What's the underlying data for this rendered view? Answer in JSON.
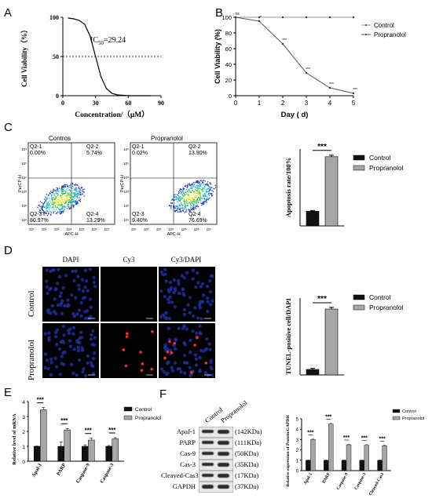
{
  "panel_labels": {
    "a": "A",
    "b": "B",
    "c": "C",
    "d": "D",
    "e": "E",
    "f": "F"
  },
  "chart_data": [
    {
      "id": "A",
      "type": "line",
      "ylabel": "Cell Viability（%）",
      "xlabel": "Concentration/（μM）",
      "xlim": [
        0,
        90
      ],
      "ylim": [
        0,
        100
      ],
      "xticks": [
        "0",
        "30",
        "60",
        "90"
      ],
      "yticks": [
        "0",
        "50",
        "100"
      ],
      "annotation": "IC50=29.24",
      "annotation_parts": {
        "pre": "IC",
        "sub": "50",
        "post": "=29.24"
      },
      "reference_line_y": 50,
      "series": [
        {
          "x": [
            5,
            10,
            15,
            20,
            25,
            30,
            35,
            40,
            45,
            50,
            55,
            60,
            70,
            80
          ],
          "y": [
            99,
            98,
            96,
            91,
            76,
            50,
            24,
            9,
            3,
            1,
            0.5,
            0,
            0,
            0
          ]
        }
      ]
    },
    {
      "id": "B",
      "type": "line",
      "ylabel": "Cell Viability (%)",
      "xlabel": "Day ( d)",
      "xlim": [
        0,
        5
      ],
      "ylim": [
        0,
        100
      ],
      "xticks": [
        "0",
        "1",
        "2",
        "3",
        "4",
        "5"
      ],
      "yticks": [
        "0",
        "20",
        "40",
        "60",
        "80",
        "100"
      ],
      "legend": [
        "Control",
        "Propranolol"
      ],
      "legend_position": "top-right",
      "series": [
        {
          "name": "Control",
          "x": [
            0,
            1,
            2,
            3,
            4,
            5
          ],
          "y": [
            100,
            100,
            100,
            100,
            100,
            100
          ]
        },
        {
          "name": "Propranolol",
          "x": [
            0,
            1,
            2,
            3,
            4,
            5
          ],
          "y": [
            100,
            95,
            66,
            29,
            10,
            3
          ]
        }
      ],
      "significance": [
        "ns",
        "*",
        "***",
        "***",
        "***",
        "***"
      ]
    },
    {
      "id": "C-bar",
      "type": "bar",
      "ylabel": "Apoptosis rate/100%",
      "categories": [
        "Control",
        "Propranolol"
      ],
      "values": [
        19,
        90
      ],
      "errors": [
        1,
        2
      ],
      "ylim": [
        0,
        100
      ],
      "legend": [
        "Control",
        "Propranolol"
      ],
      "significance": "***"
    },
    {
      "id": "D-bar",
      "type": "bar",
      "ylabel": "TUNEL-positive cell/DAPI",
      "categories": [
        "Control",
        "Propranolol"
      ],
      "values": [
        0.1,
        1.2
      ],
      "errors": [
        0.02,
        0.03
      ],
      "ylim": [
        0,
        1.4
      ],
      "legend": [
        "Control",
        "Propranolol"
      ],
      "significance": "***"
    },
    {
      "id": "E",
      "type": "bar",
      "ylabel": "Relative level of mRNA",
      "categories": [
        "Apaf-1",
        "PARP",
        "Caspase-9",
        "Caspase-3"
      ],
      "yticks": [
        "0",
        "1",
        "2",
        "3",
        "4"
      ],
      "ylim": [
        0,
        4
      ],
      "legend": [
        "Control",
        "Propranolol"
      ],
      "series": [
        {
          "name": "Control",
          "values": [
            1,
            1,
            1,
            1
          ],
          "errors": [
            0.02,
            0.3,
            0.1,
            0.05
          ]
        },
        {
          "name": "Propranolol",
          "values": [
            3.45,
            2.1,
            1.42,
            1.5
          ],
          "errors": [
            0.15,
            0.1,
            0.12,
            0.08
          ]
        }
      ],
      "significance": [
        "***",
        "***",
        "***",
        "***"
      ]
    },
    {
      "id": "F-bar",
      "type": "bar",
      "ylabel": "Relative expression of Protein/GAPDH",
      "categories": [
        "Apaf-1",
        "PARP",
        "Caspase-9",
        "Caspase-3",
        "Cleaved-Cas3"
      ],
      "yticks": [
        "0",
        "1",
        "2",
        "3",
        "4",
        "5"
      ],
      "ylim": [
        0,
        5
      ],
      "legend": [
        "Control",
        "Propranolol"
      ],
      "series": [
        {
          "name": "Control",
          "values": [
            1,
            1,
            1,
            1,
            1
          ],
          "errors": [
            0.02,
            0.02,
            0.02,
            0.02,
            0.02
          ]
        },
        {
          "name": "Propranolol",
          "values": [
            3.0,
            4.5,
            2.5,
            2.45,
            2.4
          ],
          "errors": [
            0.08,
            0.08,
            0.06,
            0.06,
            0.06
          ]
        }
      ],
      "significance": [
        "***",
        "***",
        "***",
        "***",
        "***"
      ]
    }
  ],
  "flow": {
    "plots": [
      {
        "title": "Contros",
        "q1_label": "Q2-1",
        "q1_val": "0.00%",
        "q2_label": "Q2-2",
        "q2_val": "5.74%",
        "q3_label": "Q2-3",
        "q3_val": "80.97%",
        "q4_label": "Q2-4",
        "q4_val": "13.29%"
      },
      {
        "title": "Propranolol",
        "q1_label": "Q2-1",
        "q1_val": "0.02%",
        "q2_label": "Q2-2",
        "q2_val": "13.90%",
        "q3_label": "Q2-3",
        "q3_val": "9.40%",
        "q4_label": "Q2-4",
        "q4_val": "76.69%"
      }
    ],
    "xlabel": "APC-H",
    "ylabel": "PerCP-H",
    "xticks": [
      "10¹",
      "10²",
      "10³",
      "10⁴",
      "10⁵",
      "10⁶",
      "10⁷",
      "10¹²"
    ],
    "yticks": [
      "10⁶",
      "10⁵",
      "10⁴",
      "10³",
      "10²",
      "10¹",
      "10¹²"
    ]
  },
  "microscopy": {
    "columns": [
      "DAPI",
      "Cy3",
      "Cy3/DAPI"
    ],
    "rows": [
      "Control",
      "Propranolol"
    ]
  },
  "western": {
    "lanes": [
      "Control",
      "Propranolol"
    ],
    "bands": [
      {
        "name": "Apaf-1",
        "size": "(142KDa)"
      },
      {
        "name": "PARP",
        "size": "(111KDa)"
      },
      {
        "name": "Cas-9",
        "size": "(50KDa)"
      },
      {
        "name": "Cas-3",
        "size": "(35KDa)"
      },
      {
        "name": "Cleaved-Cas3",
        "size": "(17KDa)"
      },
      {
        "name": "GAPDH",
        "size": "(37KDa)"
      }
    ]
  },
  "colors": {
    "control": "#111111",
    "propranolol": "#a6a6a6",
    "dapi": "#1c2f9c",
    "cy3": "#ff2a2a",
    "band": "#2a2a2a"
  }
}
